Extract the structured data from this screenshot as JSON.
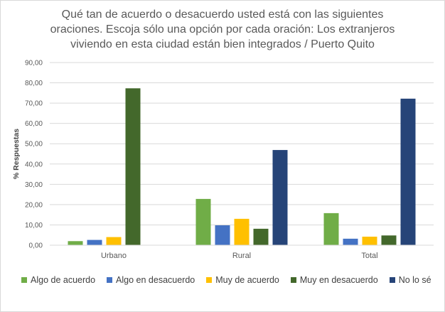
{
  "chart_data": {
    "type": "bar",
    "title_lines": [
      "Qué tan de acuerdo o desacuerdo usted está con las siguientes",
      "oraciones.  Escoja sólo una opción por cada oración: Los extranjeros",
      "viviendo en esta ciudad están bien integrados / Puerto Quito"
    ],
    "ylabel": "% Respuestas",
    "xlabel": "",
    "ylim": [
      0,
      90
    ],
    "yticks": [
      "0,00",
      "10,00",
      "20,00",
      "30,00",
      "40,00",
      "50,00",
      "60,00",
      "70,00",
      "80,00",
      "90,00"
    ],
    "grid": true,
    "legend_position": "bottom",
    "categories": [
      "Urbano",
      "Rural",
      "Total"
    ],
    "series": [
      {
        "name": "Algo de acuerdo",
        "color": "#70ad47",
        "values": [
          2.0,
          22.8,
          15.8
        ]
      },
      {
        "name": "Algo en desacuerdo",
        "color": "#4472c4",
        "values": [
          2.6,
          9.8,
          3.2
        ]
      },
      {
        "name": "Muy de acuerdo",
        "color": "#ffc000",
        "values": [
          4.0,
          13.0,
          4.2
        ]
      },
      {
        "name": "Muy en desacuerdo",
        "color": "#43682b",
        "values": [
          77.3,
          8.1,
          4.8
        ]
      },
      {
        "name": "No lo sé",
        "color": "#264478",
        "values": [
          0,
          46.9,
          72.2
        ]
      }
    ]
  }
}
